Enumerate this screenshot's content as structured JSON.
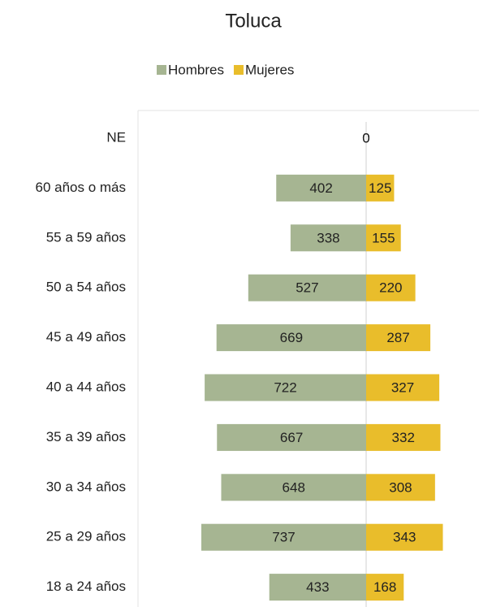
{
  "chart_data": {
    "type": "bar",
    "orientation": "horizontal",
    "layout": "diverging",
    "title": "Toluca",
    "categories": [
      "NE",
      "60 años o más",
      "55 a 59 años",
      "50 a 54 años",
      "45 a 49 años",
      "40 a 44 años",
      "35 a 39 años",
      "30 a 34 años",
      "25 a 29 años",
      "18 a 24 años"
    ],
    "series": [
      {
        "name": "Hombres",
        "color": "#a6b592",
        "side": "left",
        "values": [
          0,
          402,
          338,
          527,
          669,
          722,
          667,
          648,
          737,
          433
        ]
      },
      {
        "name": "Mujeres",
        "color": "#e9bd2b",
        "side": "right",
        "values": [
          0,
          125,
          155,
          220,
          287,
          327,
          332,
          308,
          343,
          168
        ]
      }
    ],
    "legend": "top"
  }
}
